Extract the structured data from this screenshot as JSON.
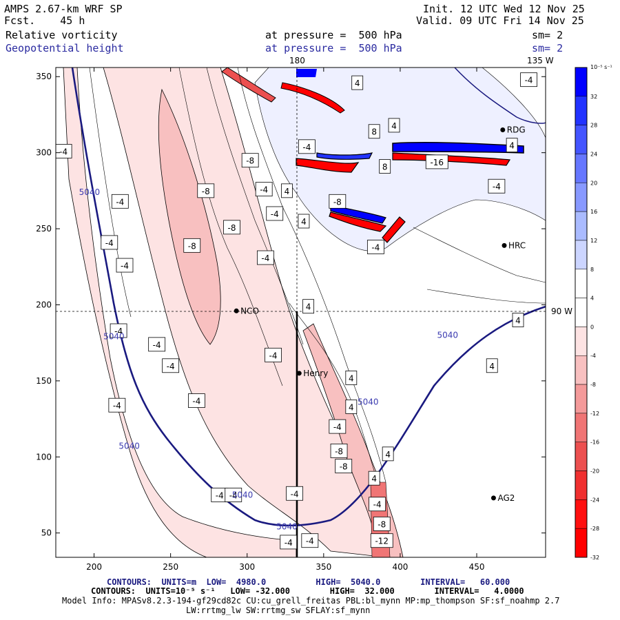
{
  "header": {
    "model": "AMPS 2.67-km WRF SP",
    "fcst": "Fcst.    45 h",
    "init": "Init. 12 UTC Wed 12 Nov 25",
    "valid": "Valid. 09 UTC Fri 14 Nov 25",
    "field1": "Relative vorticity",
    "field2": "Geopotential height",
    "pressure1": "at pressure =  500 hPa",
    "pressure2": "at pressure =  500 hPa",
    "sm1": "sm= 2",
    "sm2": "sm= 2"
  },
  "map_labels": {
    "lon_180": "180",
    "lon_135w": "135 W",
    "lon_90w": "90 W",
    "stations": [
      "NCO",
      "Henry",
      "HRC",
      "RDG",
      "AG2"
    ]
  },
  "footer": {
    "line1": "CONTOURS:  UNITS=m  LOW=  4980.0          HIGH=  5040.0        INTERVAL=   60.000",
    "line2": "CONTOURS:  UNITS=10⁻⁵ s⁻¹   LOW= -32.000        HIGH=  32.000        INTERVAL=   4.0000",
    "line3": "Model Info: MPASv8.2.3-194-gf29cd82c CU:cu_grell_freitas PBL:bl_mynn MP:mp_thompson SF:sf_noahmp 2.7",
    "line4": "LW:rrtmg_lw SW:rrtmg_sw SFLAY:sf_mynn"
  },
  "colorbar": {
    "units": "10⁻⁵ s⁻¹",
    "ticks": [
      "32",
      "28",
      "24",
      "20",
      "16",
      "12",
      "8",
      "4",
      "0",
      "-4",
      "-8",
      "-12",
      "-16",
      "-20",
      "-24",
      "-28",
      "-32"
    ],
    "colors": [
      "#0000ff",
      "#2233ff",
      "#4455ff",
      "#6677ff",
      "#8899ff",
      "#aabbff",
      "#ccd5ff",
      "#ffffff",
      "#ffffff",
      "#fde3e3",
      "#f8c0c0",
      "#f49a9a",
      "#f07575",
      "#ec5050",
      "#f03030",
      "#ff1010",
      "#ff0000"
    ]
  },
  "chart_data": {
    "type": "heatmap",
    "title": "Relative vorticity / Geopotential height at pressure = 500 hPa",
    "x_ticks": [
      200,
      250,
      300,
      350,
      400,
      450
    ],
    "y_ticks": [
      50,
      100,
      150,
      200,
      250,
      300,
      350
    ],
    "xlim": [
      175,
      495
    ],
    "ylim": [
      34,
      356
    ],
    "grid": false,
    "height_contour": {
      "units": "m",
      "levels": [
        4980,
        5040
      ],
      "interval": 60,
      "labels": [
        {
          "text": "5040",
          "x": 197,
          "y": 275
        },
        {
          "text": "5040",
          "x": 213,
          "y": 180
        },
        {
          "text": "5040",
          "x": 223,
          "y": 108
        },
        {
          "text": "5040",
          "x": 297,
          "y": 76
        },
        {
          "text": "5040",
          "x": 326,
          "y": 55
        },
        {
          "text": "5040",
          "x": 379,
          "y": 137
        },
        {
          "text": "5040",
          "x": 431,
          "y": 181
        }
      ]
    },
    "vorticity_contour": {
      "units": "10⁻⁵ s⁻¹",
      "low": -32,
      "high": 32,
      "interval": 4,
      "labels": [
        {
          "text": "-4",
          "x": 180,
          "y": 301
        },
        {
          "text": "-4",
          "x": 217,
          "y": 268
        },
        {
          "text": "-4",
          "x": 210,
          "y": 241
        },
        {
          "text": "-4",
          "x": 220,
          "y": 226
        },
        {
          "text": "-4",
          "x": 216,
          "y": 183
        },
        {
          "text": "-4",
          "x": 241,
          "y": 174
        },
        {
          "text": "-4",
          "x": 250,
          "y": 160
        },
        {
          "text": "-4",
          "x": 267,
          "y": 137
        },
        {
          "text": "-4",
          "x": 215,
          "y": 134
        },
        {
          "text": "-4",
          "x": 282,
          "y": 75
        },
        {
          "text": "-4",
          "x": 291,
          "y": 75
        },
        {
          "text": "-4",
          "x": 311,
          "y": 276
        },
        {
          "text": "-4",
          "x": 312,
          "y": 231
        },
        {
          "text": "-4",
          "x": 318,
          "y": 260
        },
        {
          "text": "-4",
          "x": 317,
          "y": 167
        },
        {
          "text": "-4",
          "x": 331,
          "y": 76
        },
        {
          "text": "-4",
          "x": 327,
          "y": 44
        },
        {
          "text": "-4",
          "x": 341,
          "y": 45
        },
        {
          "text": "-4",
          "x": 339,
          "y": 304
        },
        {
          "text": "-4",
          "x": 359,
          "y": 120
        },
        {
          "text": "-4",
          "x": 385,
          "y": 69
        },
        {
          "text": "-4",
          "x": 384,
          "y": 238
        },
        {
          "text": "-4",
          "x": 484,
          "y": 348
        },
        {
          "text": "-4",
          "x": 463,
          "y": 278
        },
        {
          "text": "4",
          "x": 340,
          "y": 199
        },
        {
          "text": "4",
          "x": 326,
          "y": 275
        },
        {
          "text": "4",
          "x": 337,
          "y": 255
        },
        {
          "text": "4",
          "x": 368,
          "y": 152
        },
        {
          "text": "4",
          "x": 368,
          "y": 133
        },
        {
          "text": "4",
          "x": 383,
          "y": 86
        },
        {
          "text": "4",
          "x": 392,
          "y": 102
        },
        {
          "text": "4",
          "x": 372,
          "y": 346
        },
        {
          "text": "4",
          "x": 396,
          "y": 318
        },
        {
          "text": "4",
          "x": 460,
          "y": 160
        },
        {
          "text": "4",
          "x": 477,
          "y": 190
        },
        {
          "text": "4",
          "x": 473,
          "y": 305
        },
        {
          "text": "-8",
          "x": 302,
          "y": 295
        },
        {
          "text": "-8",
          "x": 273,
          "y": 275
        },
        {
          "text": "-8",
          "x": 290,
          "y": 251
        },
        {
          "text": "-8",
          "x": 264,
          "y": 239
        },
        {
          "text": "-8",
          "x": 360,
          "y": 104
        },
        {
          "text": "-8",
          "x": 363,
          "y": 94
        },
        {
          "text": "-8",
          "x": 388,
          "y": 56
        },
        {
          "text": "-8",
          "x": 359,
          "y": 268
        },
        {
          "text": "8",
          "x": 383,
          "y": 314
        },
        {
          "text": "8",
          "x": 390,
          "y": 291
        },
        {
          "text": "-12",
          "x": 388,
          "y": 45
        },
        {
          "text": "-16",
          "x": 424,
          "y": 294
        }
      ]
    },
    "stations": [
      {
        "name": "NCO",
        "x": 293,
        "y": 196
      },
      {
        "name": "Henry",
        "x": 334,
        "y": 155
      },
      {
        "name": "HRC",
        "x": 468,
        "y": 239
      },
      {
        "name": "RDG",
        "x": 467,
        "y": 315
      },
      {
        "name": "AG2",
        "x": 461,
        "y": 73
      }
    ],
    "cross_section": {
      "x": 333,
      "y_from": 34,
      "y_to": 196
    },
    "ref_lines": {
      "lon_180_x": 333,
      "lon_90w_y": 196
    }
  }
}
